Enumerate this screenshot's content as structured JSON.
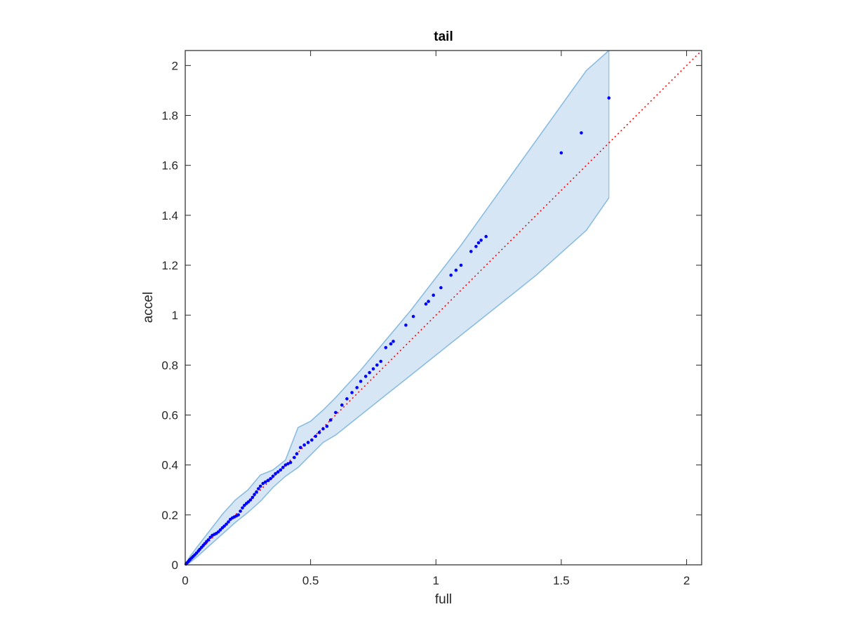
{
  "chart_data": {
    "type": "scatter",
    "title": "tail",
    "xlabel": "full",
    "ylabel": "accel",
    "xlim": [
      0,
      2.06
    ],
    "ylim": [
      0,
      2.06
    ],
    "xticks": [
      0,
      0.5,
      1,
      1.5,
      2
    ],
    "xtick_labels": [
      "0",
      "0.5",
      "1",
      "1.5",
      "2"
    ],
    "yticks": [
      0,
      0.2,
      0.4,
      0.6,
      0.8,
      1,
      1.2,
      1.4,
      1.6,
      1.8,
      2
    ],
    "ytick_labels": [
      "0",
      "0.2",
      "0.4",
      "0.6",
      "0.8",
      "1",
      "1.2",
      "1.4",
      "1.6",
      "1.8",
      "2"
    ],
    "grid": false,
    "colors": {
      "points": "#0000ff",
      "reference_line": "#ff0000",
      "band_fill": "#d6e6f4",
      "band_edge": "#8bbde0",
      "axes": "#262626"
    },
    "reference_line": {
      "style": "dotted",
      "from": [
        0,
        0
      ],
      "to": [
        2.06,
        2.06
      ]
    },
    "confidence_band": {
      "x": [
        0,
        0.02,
        0.05,
        0.1,
        0.15,
        0.2,
        0.25,
        0.3,
        0.35,
        0.4,
        0.45,
        0.5,
        0.55,
        0.6,
        0.7,
        0.8,
        0.9,
        1.0,
        1.1,
        1.2,
        1.3,
        1.4,
        1.5,
        1.6,
        1.69
      ],
      "upper": [
        0,
        0.035,
        0.075,
        0.14,
        0.205,
        0.26,
        0.3,
        0.36,
        0.38,
        0.42,
        0.55,
        0.575,
        0.62,
        0.67,
        0.78,
        0.9,
        1.02,
        1.15,
        1.28,
        1.42,
        1.56,
        1.7,
        1.84,
        1.98,
        2.06
      ],
      "lower": [
        0,
        0.01,
        0.035,
        0.08,
        0.125,
        0.17,
        0.21,
        0.255,
        0.31,
        0.355,
        0.39,
        0.44,
        0.49,
        0.52,
        0.6,
        0.68,
        0.76,
        0.84,
        0.92,
        1.0,
        1.08,
        1.16,
        1.25,
        1.34,
        1.47
      ]
    },
    "series": [
      {
        "x": [
          0.003,
          0.007,
          0.012,
          0.016,
          0.02,
          0.026,
          0.032,
          0.038,
          0.045,
          0.052,
          0.058,
          0.065,
          0.072,
          0.078,
          0.085,
          0.092,
          0.1,
          0.108,
          0.116,
          0.124,
          0.132,
          0.14,
          0.148,
          0.156,
          0.164,
          0.172,
          0.18,
          0.188,
          0.196,
          0.204,
          0.212,
          0.22,
          0.228,
          0.236,
          0.244,
          0.252,
          0.26,
          0.268,
          0.276,
          0.284,
          0.292,
          0.3,
          0.31,
          0.32,
          0.33,
          0.34,
          0.35,
          0.36,
          0.37,
          0.38,
          0.39,
          0.4,
          0.41,
          0.42,
          0.435,
          0.445,
          0.46,
          0.475,
          0.49,
          0.505,
          0.52,
          0.535,
          0.55,
          0.565,
          0.58,
          0.6,
          0.625,
          0.645,
          0.665,
          0.685,
          0.7,
          0.72,
          0.735,
          0.75,
          0.765,
          0.78,
          0.8,
          0.82,
          0.83,
          0.88,
          0.91,
          0.96,
          0.97,
          0.99,
          1.02,
          1.06,
          1.08,
          1.1,
          1.14,
          1.16,
          1.17,
          1.18,
          1.2,
          1.5,
          1.58,
          1.69
        ],
        "y": [
          0.003,
          0.008,
          0.013,
          0.018,
          0.022,
          0.028,
          0.034,
          0.04,
          0.047,
          0.055,
          0.062,
          0.07,
          0.078,
          0.085,
          0.093,
          0.1,
          0.11,
          0.118,
          0.122,
          0.126,
          0.132,
          0.14,
          0.148,
          0.155,
          0.163,
          0.172,
          0.182,
          0.188,
          0.192,
          0.196,
          0.2,
          0.215,
          0.228,
          0.238,
          0.246,
          0.252,
          0.26,
          0.27,
          0.282,
          0.292,
          0.305,
          0.315,
          0.326,
          0.332,
          0.338,
          0.345,
          0.355,
          0.365,
          0.372,
          0.38,
          0.39,
          0.4,
          0.405,
          0.41,
          0.43,
          0.445,
          0.47,
          0.48,
          0.49,
          0.5,
          0.515,
          0.53,
          0.545,
          0.555,
          0.58,
          0.61,
          0.64,
          0.665,
          0.69,
          0.71,
          0.735,
          0.755,
          0.77,
          0.785,
          0.8,
          0.815,
          0.87,
          0.885,
          0.895,
          0.96,
          0.995,
          1.045,
          1.055,
          1.08,
          1.11,
          1.16,
          1.18,
          1.2,
          1.255,
          1.275,
          1.29,
          1.3,
          1.315,
          1.65,
          1.73,
          1.87
        ]
      }
    ]
  }
}
